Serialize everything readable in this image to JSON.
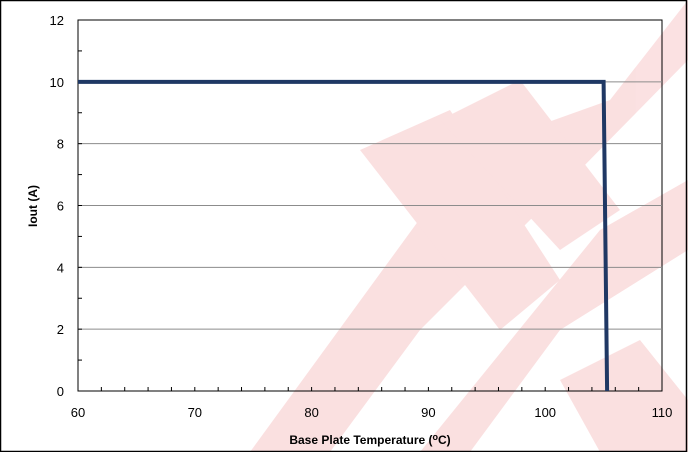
{
  "watermark": {
    "text": "MW",
    "color": "#e0161c"
  },
  "chart_data": {
    "type": "line",
    "xlabel": "Base Plate Temperature (",
    "xlabel_sup": "o",
    "xlabel_suffix": "C)",
    "ylabel": "Iout (A)",
    "xlim": [
      60,
      110
    ],
    "ylim": [
      0,
      12
    ],
    "x_ticks": [
      60,
      70,
      80,
      90,
      100,
      110
    ],
    "y_ticks": [
      0,
      2,
      4,
      6,
      8,
      10,
      12
    ],
    "grid": true,
    "line_color": "#1f3864",
    "series": [
      {
        "x": [
          60,
          105,
          105.3
        ],
        "y": [
          10,
          10,
          0
        ]
      }
    ]
  }
}
